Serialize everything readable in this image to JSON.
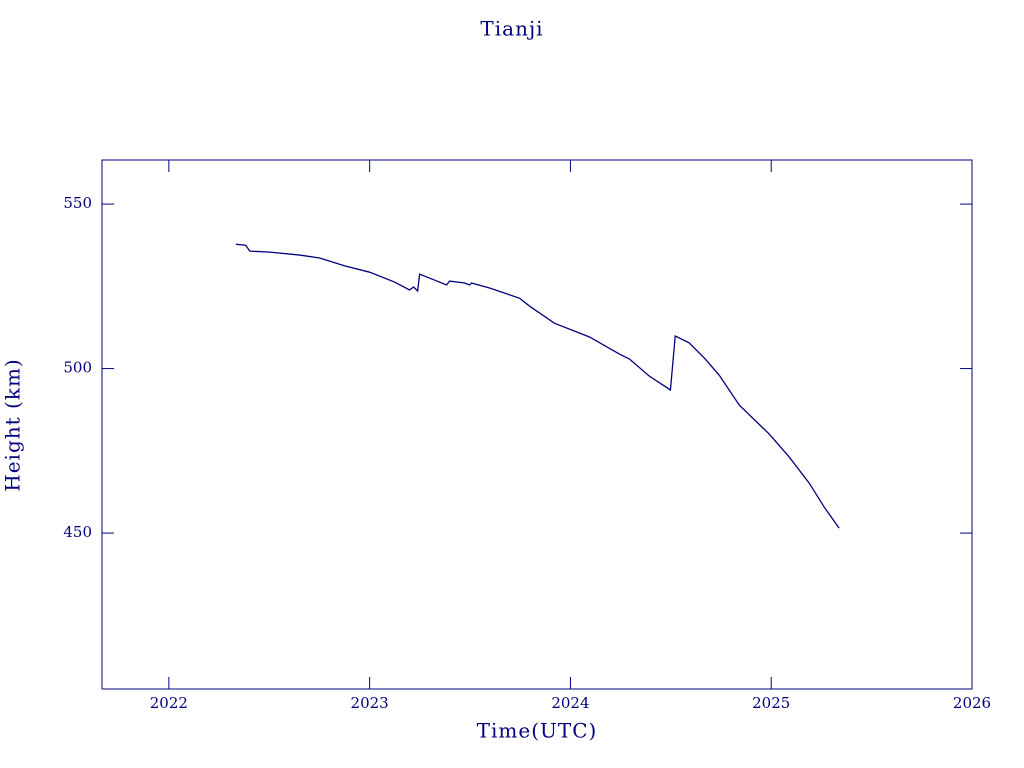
{
  "chart_data": {
    "type": "line",
    "title": "Tianji",
    "xlabel": "Time(UTC)",
    "ylabel": "Height (km)",
    "color": "#00007f",
    "xlim": [
      2021.667,
      2026.0
    ],
    "xticks": [
      2022,
      2023,
      2024,
      2025,
      2026
    ],
    "ylim": [
      402.6,
      563.4
    ],
    "yticks": [
      450,
      500,
      550
    ],
    "x": [
      2022.333,
      2022.383,
      2022.403,
      2022.502,
      2022.652,
      2022.751,
      2022.876,
      2023.0,
      2023.124,
      2023.199,
      2023.219,
      2023.239,
      2023.249,
      2023.323,
      2023.383,
      2023.398,
      2023.473,
      2023.498,
      2023.507,
      2023.597,
      2023.746,
      2023.796,
      2023.92,
      2024.095,
      2024.244,
      2024.294,
      2024.393,
      2024.498,
      2024.522,
      2024.592,
      2024.667,
      2024.741,
      2024.841,
      2024.99,
      2025.09,
      2025.189,
      2025.264,
      2025.338
    ],
    "values": [
      537.8,
      537.5,
      535.7,
      535.4,
      534.5,
      533.6,
      531.2,
      529.3,
      526.3,
      523.9,
      524.8,
      523.6,
      528.7,
      526.9,
      525.4,
      526.6,
      526.0,
      525.4,
      526.0,
      524.5,
      521.4,
      519.0,
      513.8,
      509.6,
      504.4,
      502.9,
      497.7,
      493.5,
      509.9,
      507.8,
      503.2,
      498.0,
      488.9,
      480.1,
      473.1,
      465.2,
      457.9,
      451.5
    ]
  }
}
